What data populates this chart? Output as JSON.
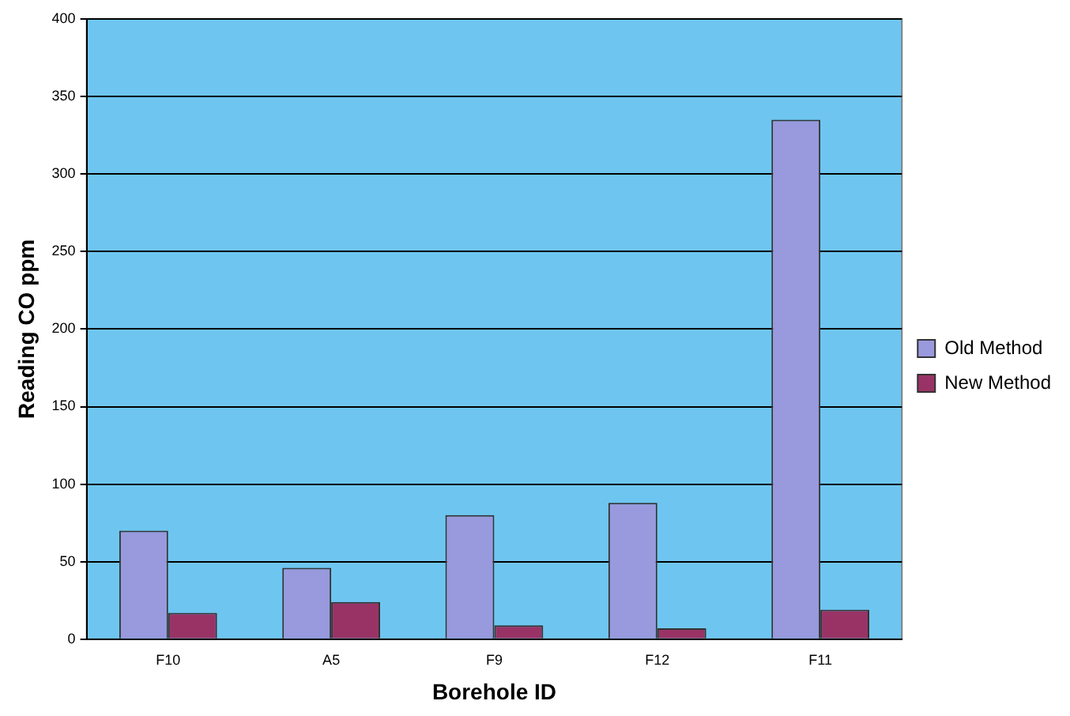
{
  "chart_data": {
    "type": "bar",
    "xlabel": "Borehole ID",
    "ylabel": "Reading CO ppm",
    "categories": [
      "F10",
      "A5",
      "F9",
      "F12",
      "F11"
    ],
    "series": [
      {
        "name": "Old Method",
        "color": "#9999dd",
        "values": [
          70,
          46,
          80,
          88,
          335
        ]
      },
      {
        "name": "New Method",
        "color": "#993366",
        "values": [
          17,
          24,
          9,
          7,
          19
        ]
      }
    ],
    "ylim": [
      0,
      400
    ],
    "yticks": [
      0,
      50,
      100,
      150,
      200,
      250,
      300,
      350,
      400
    ],
    "grid": "y",
    "legend": "right"
  }
}
